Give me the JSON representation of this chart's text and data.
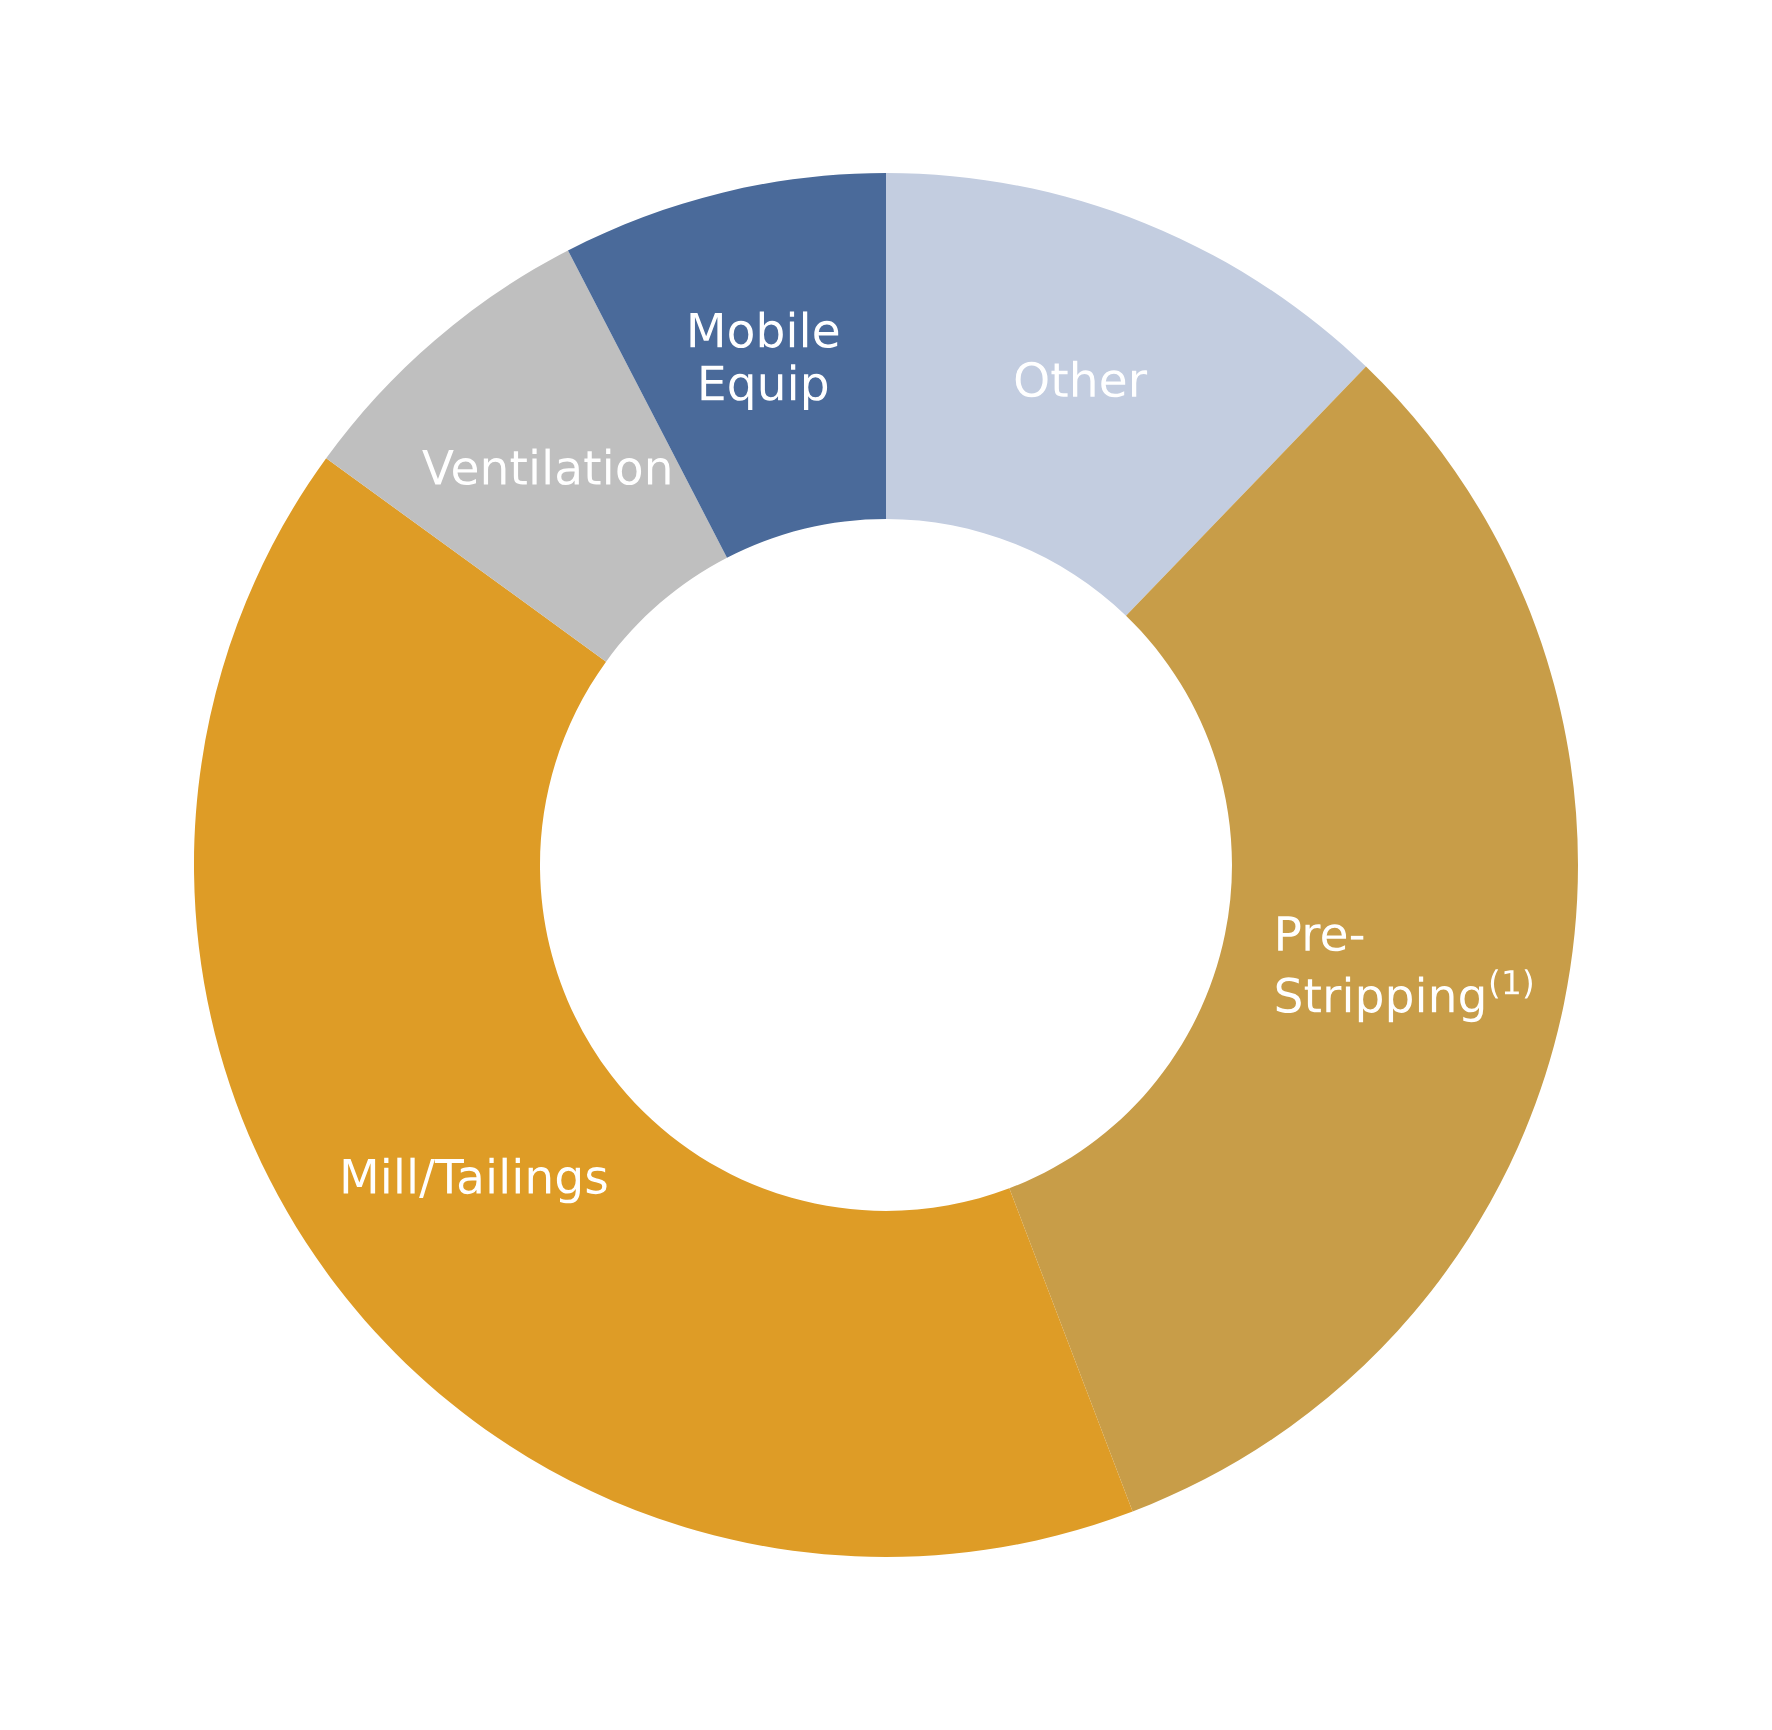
{
  "chart_data": {
    "type": "donut",
    "categories": [
      "Other",
      "Pre-\nStripping$^{(1)}$",
      "Mill/Tailings",
      "Ventilation",
      "Mobile\nEquip"
    ],
    "values": [
      12.2,
      32.0,
      40.8,
      7.4,
      7.6
    ],
    "colors": [
      "#c3cde0",
      "#c89d48",
      "#de9c26",
      "#bfbfbf",
      "#4a6a9a"
    ],
    "legend": false
  }
}
